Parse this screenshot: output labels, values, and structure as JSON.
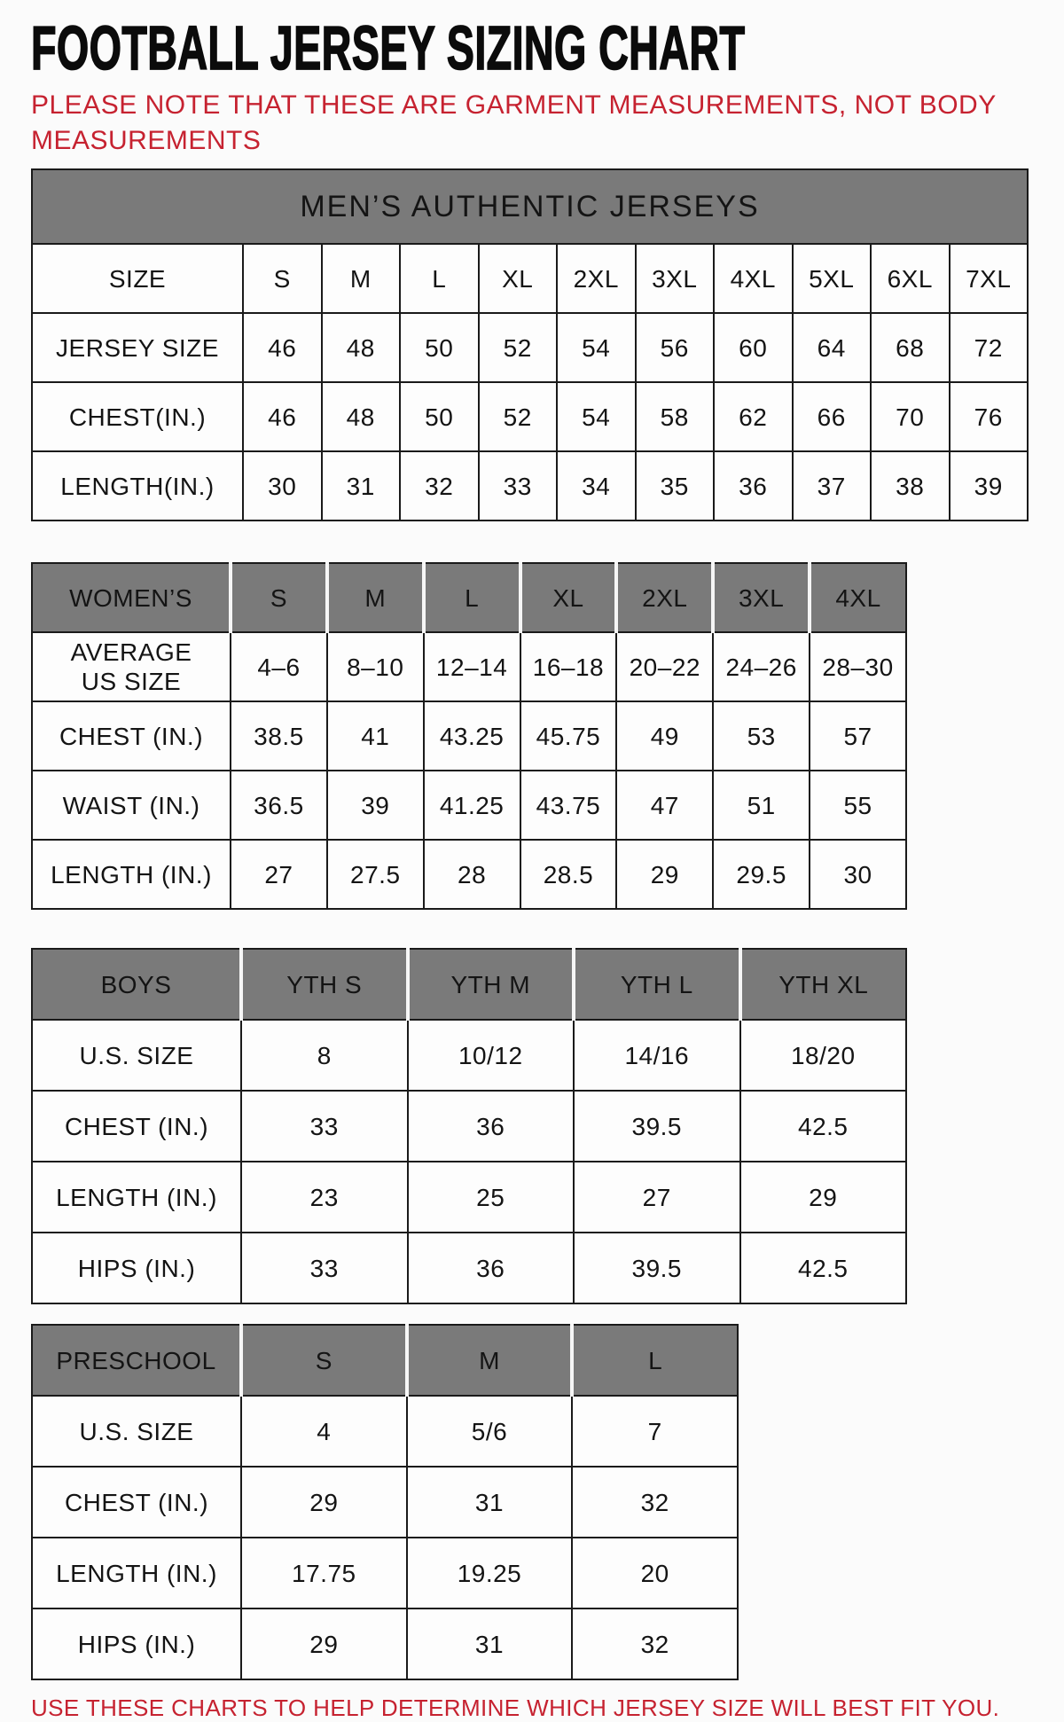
{
  "page": {
    "title": "FOOTBALL JERSEY SIZING CHART",
    "note": "PLEASE NOTE THAT THESE ARE GARMENT MEASUREMENTS, NOT BODY MEASUREMENTS",
    "footer": "USE THESE CHARTS TO HELP DETERMINE WHICH JERSEY SIZE WILL BEST FIT YOU."
  },
  "colors": {
    "accent_red": "#c62230",
    "header_gray": "#7a7a7a",
    "header_text": "#ffffff",
    "border": "#1a1a1a"
  },
  "tables": {
    "mens": {
      "header": "MEN’S AUTHENTIC JERSEYS",
      "rows": [
        {
          "label": "SIZE",
          "values": [
            "S",
            "M",
            "L",
            "XL",
            "2XL",
            "3XL",
            "4XL",
            "5XL",
            "6XL",
            "7XL"
          ]
        },
        {
          "label": "JERSEY SIZE",
          "values": [
            "46",
            "48",
            "50",
            "52",
            "54",
            "56",
            "60",
            "64",
            "68",
            "72"
          ]
        },
        {
          "label": "CHEST(IN.)",
          "values": [
            "46",
            "48",
            "50",
            "52",
            "54",
            "58",
            "62",
            "66",
            "70",
            "76"
          ]
        },
        {
          "label": "LENGTH(IN.)",
          "values": [
            "30",
            "31",
            "32",
            "33",
            "34",
            "35",
            "36",
            "37",
            "38",
            "39"
          ]
        }
      ]
    },
    "womens": {
      "header_label": "WOMEN’S",
      "header_sizes": [
        "S",
        "M",
        "L",
        "XL",
        "2XL",
        "3XL",
        "4XL"
      ],
      "rows": [
        {
          "label": "AVERAGE\nUS SIZE",
          "values": [
            "4–6",
            "8–10",
            "12–14",
            "16–18",
            "20–22",
            "24–26",
            "28–30"
          ]
        },
        {
          "label": "CHEST (IN.)",
          "values": [
            "38.5",
            "41",
            "43.25",
            "45.75",
            "49",
            "53",
            "57"
          ]
        },
        {
          "label": "WAIST (IN.)",
          "values": [
            "36.5",
            "39",
            "41.25",
            "43.75",
            "47",
            "51",
            "55"
          ]
        },
        {
          "label": "LENGTH (IN.)",
          "values": [
            "27",
            "27.5",
            "28",
            "28.5",
            "29",
            "29.5",
            "30"
          ]
        }
      ]
    },
    "boys": {
      "header_label": "BOYS",
      "header_sizes": [
        "YTH S",
        "YTH M",
        "YTH L",
        "YTH XL"
      ],
      "rows": [
        {
          "label": "U.S. SIZE",
          "values": [
            "8",
            "10/12",
            "14/16",
            "18/20"
          ]
        },
        {
          "label": "CHEST (IN.)",
          "values": [
            "33",
            "36",
            "39.5",
            "42.5"
          ]
        },
        {
          "label": "LENGTH (IN.)",
          "values": [
            "23",
            "25",
            "27",
            "29"
          ]
        },
        {
          "label": "HIPS (IN.)",
          "values": [
            "33",
            "36",
            "39.5",
            "42.5"
          ]
        }
      ]
    },
    "preschool": {
      "header_label": "PRESCHOOL",
      "header_sizes": [
        "S",
        "M",
        "L"
      ],
      "rows": [
        {
          "label": "U.S. SIZE",
          "values": [
            "4",
            "5/6",
            "7"
          ]
        },
        {
          "label": "CHEST (IN.)",
          "values": [
            "29",
            "31",
            "32"
          ]
        },
        {
          "label": "LENGTH (IN.)",
          "values": [
            "17.75",
            "19.25",
            "20"
          ]
        },
        {
          "label": "HIPS (IN.)",
          "values": [
            "29",
            "31",
            "32"
          ]
        }
      ]
    }
  },
  "layout": {
    "label_col_widths": {
      "mens": 238,
      "womens": 224,
      "boys": 236,
      "preschool": 236
    }
  }
}
